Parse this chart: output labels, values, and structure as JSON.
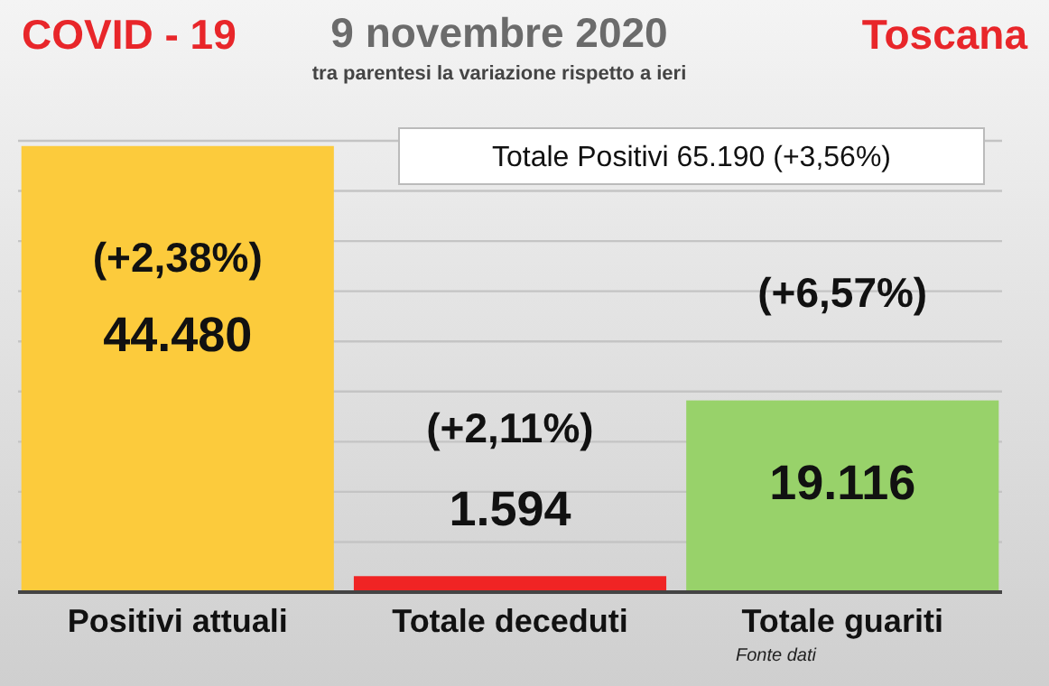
{
  "chart_data": {
    "type": "bar",
    "title": "9 novembre 2020",
    "subtitle": "tra parentesi la variazione rispetto a ieri",
    "categories": [
      "Positivi attuali",
      "Totale deceduti",
      "Totale guariti"
    ],
    "values": [
      44480,
      1594,
      19116
    ],
    "colors": [
      "#fccb3c",
      "#f02424",
      "#98d26a"
    ],
    "value_labels": [
      "44.480",
      "1.594",
      "19.116"
    ],
    "ylim": [
      0,
      45000
    ],
    "yticks": [
      {
        "value": 0,
        "label": null
      },
      {
        "value": 5000,
        "label": null
      },
      {
        "value": 10000,
        "label": null
      },
      {
        "value": 15000,
        "label": null
      },
      {
        "value": 20000,
        "label": null
      },
      {
        "value": 25000,
        "label": null
      },
      {
        "value": 30000,
        "label": null
      },
      {
        "value": 35000,
        "label": null
      },
      {
        "value": 40000,
        "label": null
      },
      {
        "value": 45000,
        "label": null
      }
    ],
    "grid": "y",
    "annotations": [
      "COVID - 19",
      "Toscana",
      "Totale Positivi 65.190 (+3,56%)",
      {
        "text": "(+2,38%)",
        "x": "Positivi attuali",
        "y": 44480
      },
      {
        "text": "(+2,11%)",
        "x": "Totale deceduti",
        "y": 1594
      },
      {
        "text": "(+6,57%)",
        "x": "Totale guariti",
        "y": 19116
      },
      "Fonte dati"
    ]
  }
}
